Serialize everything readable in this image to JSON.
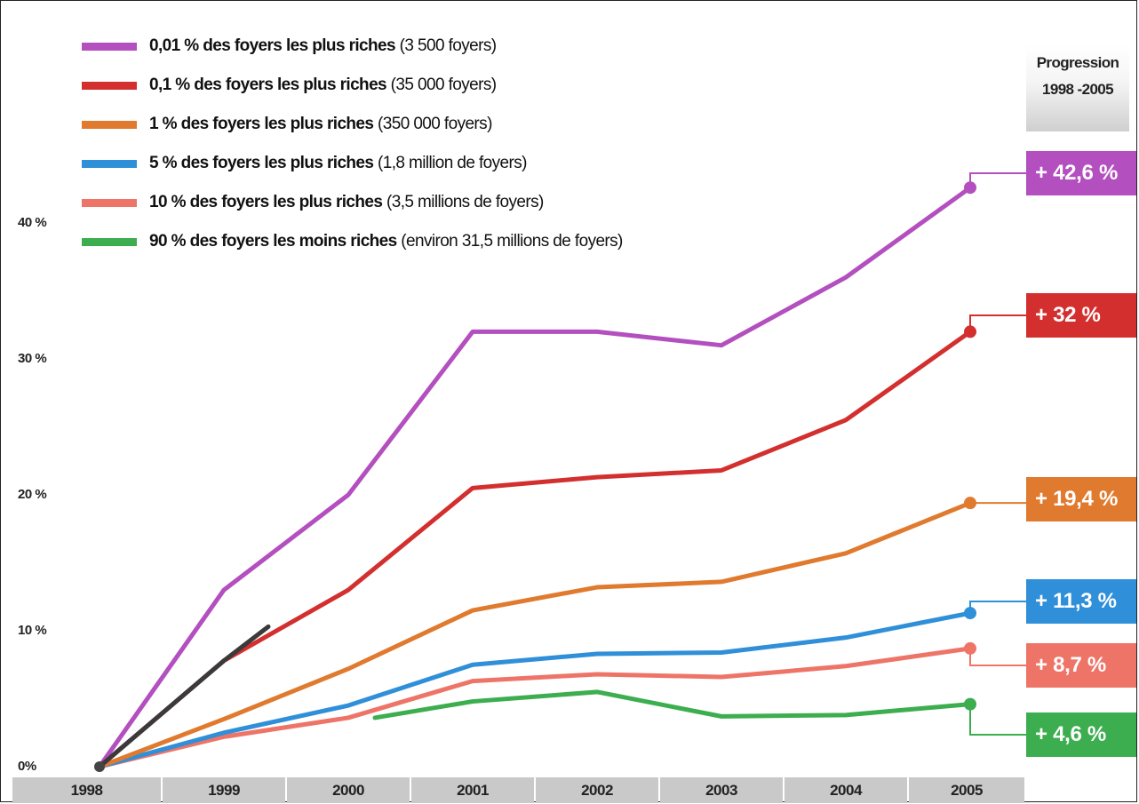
{
  "chart_data": {
    "type": "line",
    "title": "",
    "xlabel": "",
    "ylabel": "",
    "x": [
      1998,
      1999,
      2000,
      2001,
      2002,
      2003,
      2004,
      2005
    ],
    "x_tick_labels": [
      "1998",
      "1999",
      "2000",
      "2001",
      "2002",
      "2003",
      "2004",
      "2005"
    ],
    "y_tick_labels": [
      "0%",
      "10 %",
      "20 %",
      "30 %",
      "40 %"
    ],
    "ylim": [
      0,
      45
    ],
    "grid": false,
    "legend_position": "top-left",
    "side_header": [
      "Progression",
      "1998 -2005"
    ],
    "series": [
      {
        "name": "0,01 % des foyers les plus riches (3 500 foyers)",
        "name_bold": "0,01 % des foyers les plus riches",
        "name_rest": " (3 500 foyers)",
        "color": "#b34fbf",
        "values": [
          0,
          13.0,
          20.0,
          32.0,
          32.0,
          31.0,
          36.0,
          42.6
        ],
        "final_label": "+ 42,6 %"
      },
      {
        "name": "0,1 % des foyers les plus riches (35 000 foyers)",
        "name_bold": "0,1 % des foyers les plus riches",
        "name_rest": " (35 000 foyers)",
        "color": "#d32f2f",
        "values": [
          0,
          7.8,
          13.0,
          20.5,
          21.3,
          21.8,
          25.5,
          32.0
        ],
        "final_label": "+ 32 %"
      },
      {
        "name": "1 % des foyers les plus riches (350 000 foyers)",
        "name_bold": "1 % des foyers les plus riches",
        "name_rest": " (350 000 foyers)",
        "color": "#e07a2e",
        "values": [
          0,
          3.5,
          7.2,
          11.5,
          13.2,
          13.6,
          15.7,
          19.4
        ],
        "final_label": "+ 19,4 %"
      },
      {
        "name": "5 % des foyers les plus riches (1,8 million de foyers)",
        "name_bold": "5 % des foyers les plus riches",
        "name_rest": " (1,8 million de foyers)",
        "color": "#2f8fd8",
        "values": [
          0,
          2.5,
          4.5,
          7.5,
          8.3,
          8.4,
          9.5,
          11.3
        ],
        "final_label": "+ 11,3 %"
      },
      {
        "name": "10 % des foyers les plus riches (3,5 millions de foyers)",
        "name_bold": "10 % des foyers les plus riches",
        "name_rest": " (3,5 millions de foyers)",
        "color": "#ee7468",
        "values": [
          0,
          2.2,
          3.6,
          6.3,
          6.8,
          6.6,
          7.4,
          8.7
        ],
        "final_label": "+ 8,7 %"
      },
      {
        "name": "90 % des foyers les moins riches (environ 31,5 millions de foyers)",
        "name_bold": "90 % des foyers les moins riches",
        "name_rest": " (environ 31,5 millions de foyers)",
        "color": "#3cae4f",
        "values": [
          null,
          null,
          3.6,
          4.8,
          5.5,
          3.7,
          3.8,
          4.6
        ],
        "final_label": "+ 4,6 %"
      }
    ]
  }
}
